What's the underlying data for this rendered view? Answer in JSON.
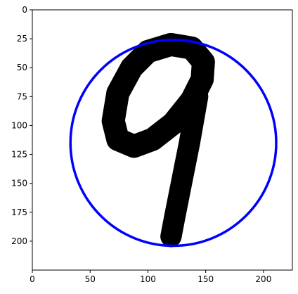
{
  "chart_data": {
    "type": "image",
    "xlim": [
      0,
      225
    ],
    "ylim": [
      225,
      0
    ],
    "x_ticks": [
      0,
      50,
      100,
      150,
      200
    ],
    "y_ticks": [
      0,
      25,
      50,
      75,
      100,
      125,
      150,
      175,
      200
    ],
    "grid": false,
    "image_content": "handwritten-digit-9",
    "circle": {
      "center": [
        122,
        115
      ],
      "radius": 89,
      "color": "#0000ff"
    },
    "stroke_color": "#000000",
    "background_color": "#ffffff"
  }
}
